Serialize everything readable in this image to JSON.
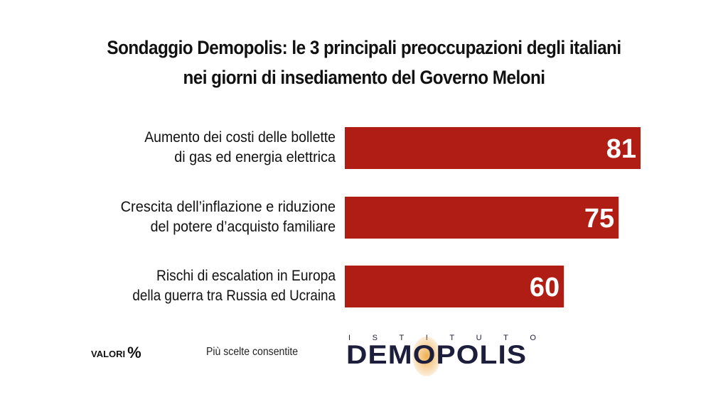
{
  "chart_data": {
    "type": "bar",
    "orientation": "horizontal",
    "title": "Sondaggio Demopolis: le 3 principali preoccupazioni degli italiani",
    "subtitle": "nei giorni di insediamento del Governo Meloni",
    "categories": [
      [
        "Aumento dei costi delle bollette",
        "di gas ed energia elettrica"
      ],
      [
        "Crescita dell’inflazione e riduzione",
        "del potere d’acquisto familiare"
      ],
      [
        "Rischi di escalation in Europa",
        "della guerra tra Russia ed Ucraina"
      ]
    ],
    "values": [
      81,
      75,
      60
    ],
    "xlim": [
      0,
      100
    ],
    "bar_color": "#b01d14",
    "grid": false
  },
  "footer": {
    "valori_label": "VALORI",
    "percent_sign": "%",
    "note": "Più scelte consentite"
  },
  "logo": {
    "top_text": [
      "I",
      "S",
      "T",
      "I",
      "T",
      "U",
      "T",
      "O"
    ],
    "name": "DEMOPOLIS"
  }
}
